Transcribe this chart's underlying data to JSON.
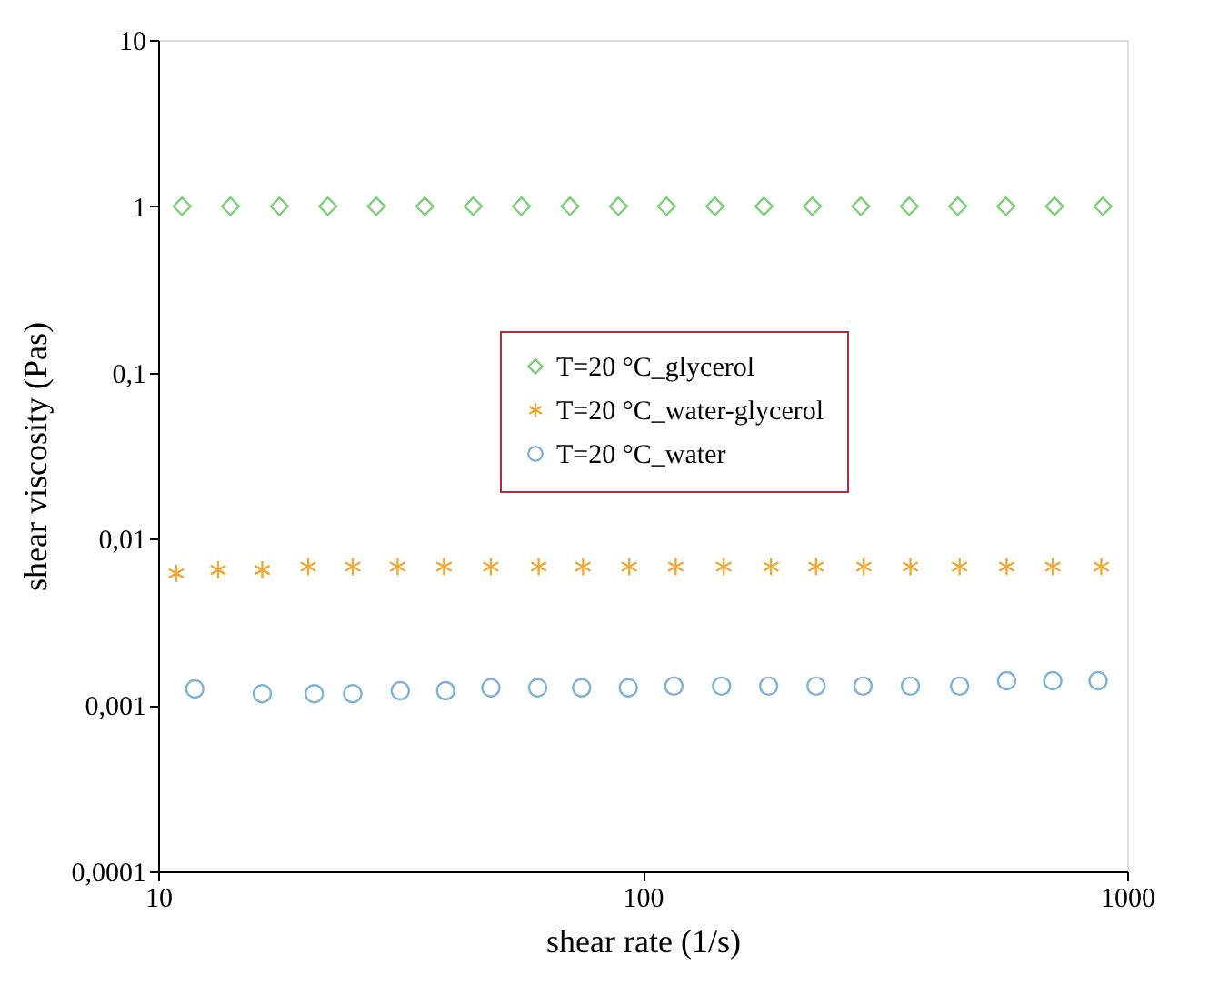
{
  "chart_data": {
    "type": "scatter",
    "xlabel": "shear rate (1/s)",
    "ylabel": "shear viscosity  (Pas)",
    "log": "xy",
    "grid": false,
    "legend": "right",
    "xlim": [
      10,
      1000
    ],
    "xticks": [
      10,
      100,
      1000
    ],
    "ylim": [
      0.0001,
      10
    ],
    "yticks": [
      {
        "value": 0.0001,
        "label": "0,0001"
      },
      {
        "value": 0.001,
        "label": "0,001"
      },
      {
        "value": 0.01,
        "label": "0,01"
      },
      {
        "value": 0.1,
        "label": "0,1"
      },
      {
        "value": 1,
        "label": "1"
      },
      {
        "value": 10,
        "label": "10"
      }
    ],
    "series": [
      {
        "name": "T=20 °C_glycerol",
        "color": "#7fcf7f",
        "marker": "diamond",
        "x": [
          11.2,
          14.1,
          17.8,
          22.4,
          28.2,
          35.5,
          44.7,
          56.2,
          70.8,
          89.1,
          112,
          141,
          178,
          224,
          282,
          355,
          447,
          562,
          708,
          891
        ],
        "values": [
          1,
          1,
          1,
          1,
          1,
          1,
          1,
          1,
          1,
          1,
          1,
          1,
          1,
          1,
          1,
          1,
          1,
          1,
          1,
          1
        ]
      },
      {
        "name": "T=20 °C_water-glycerol",
        "color": "#f0a838",
        "marker": "cross",
        "x": [
          10.9,
          13.3,
          16.4,
          20.4,
          25.2,
          31.2,
          38.9,
          48.6,
          61,
          75.3,
          93.8,
          117,
          147,
          184,
          228,
          286,
          357,
          451,
          564,
          702,
          884
        ],
        "values": [
          0.0062,
          0.0065,
          0.0065,
          0.0068,
          0.0068,
          0.0068,
          0.0068,
          0.0068,
          0.0068,
          0.0068,
          0.0068,
          0.0068,
          0.0068,
          0.0068,
          0.0068,
          0.0068,
          0.0068,
          0.0068,
          0.0068,
          0.0068,
          0.0068
        ]
      },
      {
        "name": "T=20 °C_water",
        "color": "#7fb3d3",
        "marker": "circle",
        "x": [
          11.9,
          16.4,
          21.0,
          25.2,
          31.6,
          39.2,
          48.6,
          60.7,
          74.8,
          93.4,
          116,
          145.5,
          182,
          228,
          285,
          357,
          451,
          564,
          702,
          871
        ],
        "values": [
          0.00125,
          0.00117,
          0.00117,
          0.00117,
          0.00122,
          0.00122,
          0.00127,
          0.00127,
          0.00127,
          0.00127,
          0.0013,
          0.0013,
          0.0013,
          0.0013,
          0.0013,
          0.0013,
          0.0013,
          0.0014,
          0.0014,
          0.0014
        ]
      }
    ]
  }
}
